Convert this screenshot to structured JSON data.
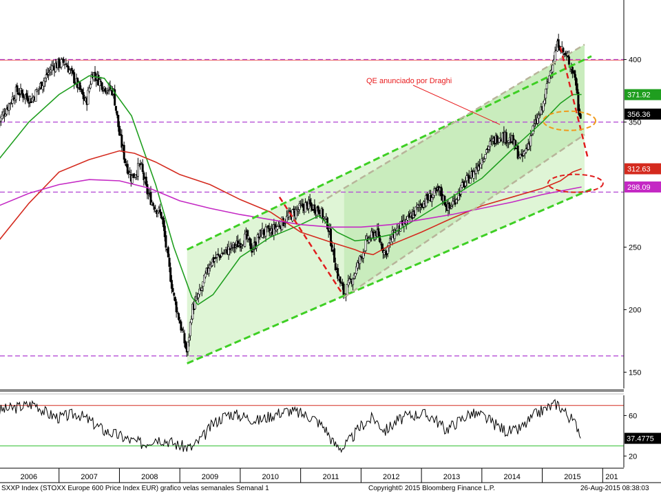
{
  "chart_data": [
    {
      "type": "candlestick",
      "title": "SXXP Index (STOXX Europe 600 Price Index EUR) grafico velas semanales  Semanal 1",
      "y_axis_side": "right",
      "ylim": [
        137,
        430
      ],
      "yticks": [
        150,
        200,
        250,
        350,
        400
      ],
      "x_ticks": [
        "2006",
        "2007",
        "2008",
        "2009",
        "2010",
        "2011",
        "2012",
        "2013",
        "2014",
        "2015",
        "201"
      ],
      "price_path": [
        [
          2006.0,
          350
        ],
        [
          2006.3,
          375
        ],
        [
          2006.55,
          368
        ],
        [
          2006.9,
          395
        ],
        [
          2007.1,
          398
        ],
        [
          2007.3,
          380
        ],
        [
          2007.45,
          365
        ],
        [
          2007.55,
          390
        ],
        [
          2007.75,
          378
        ],
        [
          2007.9,
          375
        ],
        [
          2008.0,
          340
        ],
        [
          2008.1,
          318
        ],
        [
          2008.2,
          305
        ],
        [
          2008.35,
          316
        ],
        [
          2008.45,
          295
        ],
        [
          2008.55,
          285
        ],
        [
          2008.7,
          275
        ],
        [
          2008.8,
          240
        ],
        [
          2008.9,
          210
        ],
        [
          2009.0,
          190
        ],
        [
          2009.12,
          165
        ],
        [
          2009.2,
          200
        ],
        [
          2009.35,
          215
        ],
        [
          2009.5,
          238
        ],
        [
          2009.7,
          245
        ],
        [
          2009.95,
          252
        ],
        [
          2010.1,
          258
        ],
        [
          2010.2,
          248
        ],
        [
          2010.35,
          262
        ],
        [
          2010.5,
          262
        ],
        [
          2010.7,
          270
        ],
        [
          2010.9,
          278
        ],
        [
          2011.1,
          284
        ],
        [
          2011.3,
          280
        ],
        [
          2011.45,
          268
        ],
        [
          2011.6,
          230
        ],
        [
          2011.72,
          212
        ],
        [
          2011.9,
          230
        ],
        [
          2012.1,
          255
        ],
        [
          2012.25,
          262
        ],
        [
          2012.4,
          245
        ],
        [
          2012.55,
          262
        ],
        [
          2012.75,
          270
        ],
        [
          2013.0,
          285
        ],
        [
          2013.3,
          295
        ],
        [
          2013.45,
          280
        ],
        [
          2013.7,
          300
        ],
        [
          2013.9,
          312
        ],
        [
          2014.1,
          330
        ],
        [
          2014.3,
          340
        ],
        [
          2014.5,
          335
        ],
        [
          2014.65,
          320
        ],
        [
          2014.75,
          330
        ],
        [
          2014.85,
          345
        ],
        [
          2015.0,
          360
        ],
        [
          2015.15,
          395
        ],
        [
          2015.27,
          414
        ],
        [
          2015.35,
          405
        ],
        [
          2015.45,
          398
        ],
        [
          2015.55,
          385
        ],
        [
          2015.6,
          360
        ],
        [
          2015.65,
          356
        ]
      ],
      "moving_averages": [
        {
          "color": "#1f9e1f",
          "points": [
            [
              2006.0,
              320
            ],
            [
              2006.5,
              350
            ],
            [
              2007.0,
              372
            ],
            [
              2007.5,
              387
            ],
            [
              2007.75,
              385
            ],
            [
              2008.2,
              355
            ],
            [
              2008.6,
              300
            ],
            [
              2008.9,
              250
            ],
            [
              2009.2,
              210
            ],
            [
              2009.3,
              204
            ],
            [
              2009.55,
              212
            ],
            [
              2010.0,
              242
            ],
            [
              2010.5,
              258
            ],
            [
              2011.0,
              268
            ],
            [
              2011.3,
              275
            ],
            [
              2011.6,
              262
            ],
            [
              2011.9,
              255
            ],
            [
              2012.1,
              256
            ],
            [
              2012.5,
              260
            ],
            [
              2013.0,
              275
            ],
            [
              2013.5,
              290
            ],
            [
              2014.0,
              305
            ],
            [
              2014.5,
              328
            ],
            [
              2015.0,
              350
            ],
            [
              2015.3,
              365
            ],
            [
              2015.5,
              372
            ],
            [
              2015.65,
              372
            ]
          ]
        },
        {
          "color": "#d42a1e",
          "points": [
            [
              2006.0,
              255
            ],
            [
              2006.5,
              285
            ],
            [
              2007.0,
              310
            ],
            [
              2007.5,
              320
            ],
            [
              2008.0,
              327
            ],
            [
              2008.25,
              325
            ],
            [
              2008.6,
              318
            ],
            [
              2009.0,
              308
            ],
            [
              2009.5,
              300
            ],
            [
              2010.0,
              288
            ],
            [
              2010.5,
              278
            ],
            [
              2011.0,
              262
            ],
            [
              2011.5,
              254
            ],
            [
              2011.9,
              248
            ],
            [
              2012.0,
              246
            ],
            [
              2012.2,
              244
            ],
            [
              2012.5,
              252
            ],
            [
              2013.0,
              262
            ],
            [
              2013.5,
              273
            ],
            [
              2014.0,
              283
            ],
            [
              2014.5,
              290
            ],
            [
              2015.0,
              297
            ],
            [
              2015.3,
              303
            ],
            [
              2015.5,
              310
            ],
            [
              2015.65,
              312.63
            ]
          ]
        },
        {
          "color": "#c428c4",
          "points": [
            [
              2006.0,
              283
            ],
            [
              2006.5,
              293
            ],
            [
              2007.0,
              300
            ],
            [
              2007.5,
              304
            ],
            [
              2008.0,
              303
            ],
            [
              2008.5,
              297
            ],
            [
              2009.0,
              287
            ],
            [
              2009.5,
              281
            ],
            [
              2010.0,
              276
            ],
            [
              2010.5,
              272
            ],
            [
              2011.0,
              268
            ],
            [
              2011.5,
              266
            ],
            [
              2012.0,
              266
            ],
            [
              2012.5,
              268
            ],
            [
              2013.0,
              272
            ],
            [
              2013.5,
              276
            ],
            [
              2014.0,
              281
            ],
            [
              2014.5,
              286
            ],
            [
              2015.0,
              292
            ],
            [
              2015.65,
              298.09
            ]
          ]
        }
      ],
      "channel": {
        "upper": [
          [
            2009.12,
            248
          ],
          [
            2015.7,
            400
          ]
        ],
        "lower": [
          [
            2009.12,
            157
          ],
          [
            2015.7,
            294
          ]
        ],
        "inner_upper": [
          [
            2011.3,
            285
          ],
          [
            2015.7,
            412
          ]
        ],
        "inner_lower": [
          [
            2011.72,
            210
          ],
          [
            2015.7,
            340
          ]
        ]
      },
      "horizontal_levels": [
        400,
        350,
        294,
        163
      ],
      "annotation": "QE anunciado por Draghi",
      "last_values": [
        {
          "label": "371.92",
          "value": 371.92,
          "color": "#1f9e1f"
        },
        {
          "label": "356.36",
          "value": 356.36,
          "color": "#000000"
        },
        {
          "label": "312.63",
          "value": 312.63,
          "color": "#d42a1e"
        },
        {
          "label": "298.09",
          "value": 298.09,
          "color": "#c428c4"
        }
      ]
    },
    {
      "type": "line",
      "ylim": [
        10,
        80
      ],
      "yticks": [
        20,
        60
      ],
      "upper_level": 70,
      "lower_level": 30,
      "series": [
        {
          "points": [
            [
              2006.0,
              65
            ],
            [
              2006.3,
              68
            ],
            [
              2006.6,
              72
            ],
            [
              2006.8,
              62
            ],
            [
              2007.0,
              58
            ],
            [
              2007.3,
              62
            ],
            [
              2007.5,
              55
            ],
            [
              2007.75,
              45
            ],
            [
              2008.0,
              40
            ],
            [
              2008.2,
              35
            ],
            [
              2008.4,
              32
            ],
            [
              2008.6,
              38
            ],
            [
              2008.8,
              35
            ],
            [
              2009.0,
              30
            ],
            [
              2009.2,
              28
            ],
            [
              2009.4,
              40
            ],
            [
              2009.55,
              52
            ],
            [
              2009.8,
              62
            ],
            [
              2010.0,
              60
            ],
            [
              2010.3,
              55
            ],
            [
              2010.6,
              62
            ],
            [
              2010.8,
              65
            ],
            [
              2011.0,
              62
            ],
            [
              2011.2,
              58
            ],
            [
              2011.4,
              48
            ],
            [
              2011.55,
              32
            ],
            [
              2011.7,
              28
            ],
            [
              2011.85,
              38
            ],
            [
              2012.0,
              50
            ],
            [
              2012.2,
              58
            ],
            [
              2012.4,
              45
            ],
            [
              2012.6,
              55
            ],
            [
              2012.8,
              60
            ],
            [
              2013.0,
              62
            ],
            [
              2013.2,
              58
            ],
            [
              2013.4,
              46
            ],
            [
              2013.6,
              54
            ],
            [
              2013.8,
              62
            ],
            [
              2014.0,
              60
            ],
            [
              2014.2,
              52
            ],
            [
              2014.4,
              45
            ],
            [
              2014.55,
              44
            ],
            [
              2014.7,
              50
            ],
            [
              2014.9,
              62
            ],
            [
              2015.1,
              68
            ],
            [
              2015.25,
              72
            ],
            [
              2015.4,
              62
            ],
            [
              2015.5,
              55
            ],
            [
              2015.6,
              48
            ],
            [
              2015.65,
              37.48
            ]
          ]
        }
      ],
      "last_value": {
        "label": "37.4775",
        "value": 37.4775
      }
    }
  ],
  "footer": {
    "left": "SXXP Index (STOXX Europe 600 Price Index EUR) grafico velas semanales  Semanal 1",
    "center": "Copyright© 2015 Bloomberg Finance L.P.",
    "right": "26-Aug-2015 08:38:03"
  }
}
